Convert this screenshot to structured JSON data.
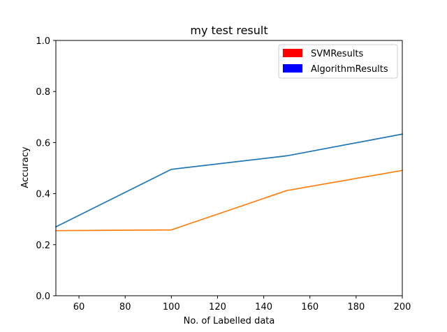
{
  "chart_data": {
    "type": "line",
    "title": "my test result",
    "xlabel": "No. of Labelled data",
    "ylabel": "Accuracy",
    "xlim": [
      50,
      200
    ],
    "ylim": [
      0,
      1.0
    ],
    "x_ticks": [
      60,
      80,
      100,
      120,
      140,
      160,
      180,
      200
    ],
    "y_ticks": [
      0.0,
      0.2,
      0.4,
      0.6,
      0.8,
      1.0
    ],
    "x_tick_labels": [
      "60",
      "80",
      "100",
      "120",
      "140",
      "160",
      "180",
      "200"
    ],
    "y_tick_labels": [
      "0.0",
      "0.2",
      "0.4",
      "0.6",
      "0.8",
      "1.0"
    ],
    "grid": false,
    "legend_position": "top-right",
    "legend": [
      {
        "label": "SVMResults",
        "color": "#ff0000"
      },
      {
        "label": "AlgorithmResults",
        "color": "#0000ff"
      }
    ],
    "series": [
      {
        "color": "#1f77b4",
        "x": [
          50,
          100,
          150,
          200
        ],
        "y": [
          0.27,
          0.495,
          0.548,
          0.633
        ]
      },
      {
        "color": "#ff7f0e",
        "x": [
          50,
          100,
          150,
          200
        ],
        "y": [
          0.255,
          0.258,
          0.412,
          0.491
        ]
      }
    ]
  }
}
